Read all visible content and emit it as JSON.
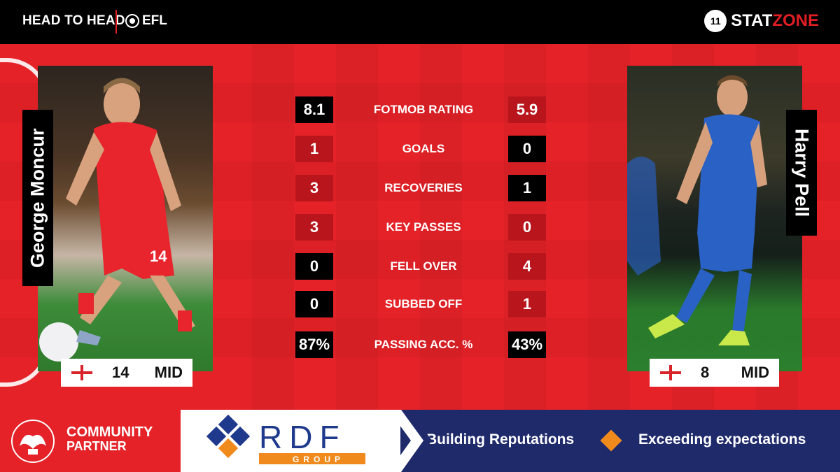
{
  "header": {
    "title": "HEAD TO HEAD",
    "league": "EFL",
    "brand_stat": "STAT",
    "brand_zone": "ZONE",
    "brand_icon": "11"
  },
  "players": {
    "left": {
      "name": "George Moncur",
      "number": "14",
      "position": "MID",
      "flag_icon": "england-flag-icon"
    },
    "right": {
      "name": "Harry Pell",
      "number": "8",
      "position": "MID",
      "flag_icon": "england-flag-icon"
    }
  },
  "stats": [
    {
      "label": "FOTMOB RATING",
      "left": "8.1",
      "right": "5.9",
      "left_better": true
    },
    {
      "label": "GOALS",
      "left": "1",
      "right": "0",
      "left_better": true
    },
    {
      "label": "RECOVERIES",
      "left": "3",
      "right": "1",
      "left_better": true
    },
    {
      "label": "KEY PASSES",
      "left": "3",
      "right": "0",
      "left_better": true
    },
    {
      "label": "FELL OVER",
      "left": "0",
      "right": "4",
      "left_better": true
    },
    {
      "label": "SUBBED OFF",
      "left": "0",
      "right": "1",
      "left_better": true
    },
    {
      "label": "PASSING ACC. %",
      "left": "87%",
      "right": "43%",
      "left_better": true
    }
  ],
  "footer": {
    "partner_line1": "COMMUNITY",
    "partner_line2": "PARTNER",
    "sponsor": "RDF",
    "sponsor_sub": "GROUP",
    "slogan1": "Building Reputations",
    "slogan2": "Exceeding expectations"
  },
  "colors": {
    "red": "#e42228",
    "dark_red": "#b8161c",
    "black": "#000000",
    "navy": "#1f2a6b",
    "orange": "#f08a1d",
    "sponsor_blue": "#1f3a8c"
  }
}
